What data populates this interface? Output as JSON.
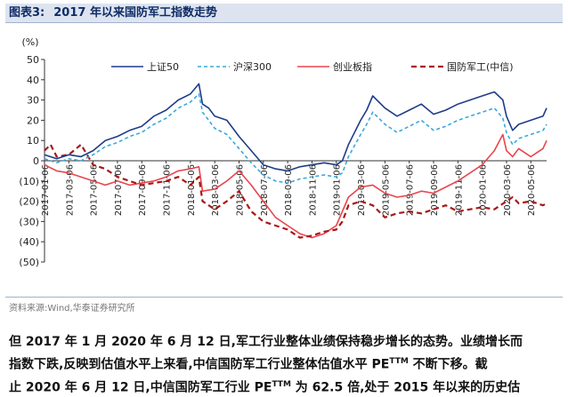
{
  "figure": {
    "label": "图表3:",
    "title": "2017 年以来国防军工指数走势"
  },
  "source": "资料来源:Wind,华泰证券研究所",
  "paragraph": {
    "line1": "但 2017 年 1 月 2020 年 6 月 12 日,军工行业整体业绩保持稳步增长的态势。业绩增长而",
    "line2": "指数下跌,反映到估值水平上来看,中信国防军工行业整体估值水平 PE",
    "line2_sup": "TTM",
    "line2_end": " 不断下移。截",
    "line3": "止 2020 年 6 月 12 日,中信国防军工行业 PE",
    "line3_sup": "TTM",
    "line3_end": " 为 62.5 倍,处于 2015 年以来的历史估"
  },
  "chart_data": {
    "type": "line",
    "ylabel": "(%)",
    "ylim": [
      -50,
      50
    ],
    "yticks": [
      "50",
      "40",
      "30",
      "20",
      "10",
      "0",
      "(10)",
      "(20)",
      "(30)",
      "(40)",
      "(50)"
    ],
    "ytick_values": [
      50,
      40,
      30,
      20,
      10,
      0,
      -10,
      -20,
      -30,
      -40,
      -50
    ],
    "x_ticks": [
      "2017-01-06",
      "2017-03-06",
      "2017-05-06",
      "2017-07-06",
      "2017-09-06",
      "2017-11-06",
      "2018-01-06",
      "2018-03-06",
      "2018-05-06",
      "2018-07-06",
      "2018-09-06",
      "2018-11-06",
      "2019-01-06",
      "2019-03-06",
      "2019-05-06",
      "2019-07-06",
      "2019-09-06",
      "2019-11-06",
      "2020-01-06",
      "2020-03-06",
      "2020-05-06"
    ],
    "x_range_months": [
      0,
      41.3
    ],
    "grid": false,
    "legend_position": "top",
    "series": [
      {
        "name": "上证50",
        "color": "#1f3c88",
        "dash": "solid",
        "points": [
          [
            0,
            3
          ],
          [
            1,
            1
          ],
          [
            2,
            3
          ],
          [
            3,
            2
          ],
          [
            4,
            5
          ],
          [
            5,
            10
          ],
          [
            6,
            12
          ],
          [
            7,
            15
          ],
          [
            8,
            17
          ],
          [
            9,
            22
          ],
          [
            10,
            25
          ],
          [
            11,
            30
          ],
          [
            12,
            33
          ],
          [
            12.7,
            38
          ],
          [
            13,
            28
          ],
          [
            13.5,
            26
          ],
          [
            14,
            22
          ],
          [
            15,
            20
          ],
          [
            16,
            12
          ],
          [
            17,
            5
          ],
          [
            18,
            -2
          ],
          [
            19,
            -4
          ],
          [
            20,
            -5
          ],
          [
            21,
            -3
          ],
          [
            22,
            -2
          ],
          [
            23,
            -1
          ],
          [
            24,
            -2
          ],
          [
            24.5,
            0
          ],
          [
            25,
            8
          ],
          [
            26,
            20
          ],
          [
            26.5,
            25
          ],
          [
            27,
            32
          ],
          [
            28,
            26
          ],
          [
            29,
            22
          ],
          [
            30,
            25
          ],
          [
            31,
            28
          ],
          [
            32,
            23
          ],
          [
            33,
            25
          ],
          [
            34,
            28
          ],
          [
            35,
            30
          ],
          [
            36,
            32
          ],
          [
            37,
            34
          ],
          [
            37.7,
            30
          ],
          [
            38,
            22
          ],
          [
            38.5,
            15
          ],
          [
            39,
            18
          ],
          [
            40,
            20
          ],
          [
            41,
            22
          ],
          [
            41.3,
            26
          ]
        ]
      },
      {
        "name": "沪深300",
        "color": "#39a9dc",
        "dash": "4,3",
        "points": [
          [
            0,
            1
          ],
          [
            1,
            -1
          ],
          [
            2,
            1
          ],
          [
            3,
            0
          ],
          [
            4,
            3
          ],
          [
            5,
            7
          ],
          [
            6,
            9
          ],
          [
            7,
            12
          ],
          [
            8,
            14
          ],
          [
            9,
            18
          ],
          [
            10,
            21
          ],
          [
            11,
            26
          ],
          [
            12,
            29
          ],
          [
            12.7,
            33
          ],
          [
            13,
            24
          ],
          [
            13.5,
            20
          ],
          [
            14,
            16
          ],
          [
            15,
            13
          ],
          [
            16,
            6
          ],
          [
            17,
            -1
          ],
          [
            18,
            -7
          ],
          [
            19,
            -10
          ],
          [
            20,
            -11
          ],
          [
            21,
            -9
          ],
          [
            22,
            -8
          ],
          [
            23,
            -7
          ],
          [
            24,
            -8
          ],
          [
            24.5,
            -6
          ],
          [
            25,
            2
          ],
          [
            26,
            13
          ],
          [
            26.5,
            18
          ],
          [
            27,
            24
          ],
          [
            28,
            18
          ],
          [
            29,
            14
          ],
          [
            30,
            17
          ],
          [
            31,
            20
          ],
          [
            32,
            15
          ],
          [
            33,
            17
          ],
          [
            34,
            20
          ],
          [
            35,
            22
          ],
          [
            36,
            24
          ],
          [
            37,
            26
          ],
          [
            37.7,
            21
          ],
          [
            38,
            14
          ],
          [
            38.5,
            8
          ],
          [
            39,
            11
          ],
          [
            40,
            13
          ],
          [
            41,
            15
          ],
          [
            41.3,
            18
          ]
        ]
      },
      {
        "name": "创业板指",
        "color": "#e8464e",
        "dash": "solid",
        "points": [
          [
            0,
            -2
          ],
          [
            1,
            -5
          ],
          [
            2,
            -6
          ],
          [
            3,
            -8
          ],
          [
            4,
            -10
          ],
          [
            5,
            -12
          ],
          [
            6,
            -10
          ],
          [
            7,
            -12
          ],
          [
            8,
            -11
          ],
          [
            9,
            -10
          ],
          [
            10,
            -8
          ],
          [
            11,
            -5
          ],
          [
            12,
            -4
          ],
          [
            12.7,
            -3
          ],
          [
            13,
            -15
          ],
          [
            14,
            -14
          ],
          [
            15,
            -10
          ],
          [
            16,
            -5
          ],
          [
            17,
            -12
          ],
          [
            18,
            -20
          ],
          [
            19,
            -28
          ],
          [
            20,
            -32
          ],
          [
            21,
            -36
          ],
          [
            22,
            -38
          ],
          [
            23,
            -36
          ],
          [
            24,
            -32
          ],
          [
            24.5,
            -25
          ],
          [
            25,
            -18
          ],
          [
            26,
            -13
          ],
          [
            27,
            -12
          ],
          [
            28,
            -16
          ],
          [
            29,
            -18
          ],
          [
            30,
            -17
          ],
          [
            31,
            -15
          ],
          [
            32,
            -16
          ],
          [
            33,
            -13
          ],
          [
            34,
            -10
          ],
          [
            35,
            -6
          ],
          [
            36,
            -2
          ],
          [
            37,
            5
          ],
          [
            37.7,
            13
          ],
          [
            38,
            5
          ],
          [
            38.5,
            2
          ],
          [
            39,
            6
          ],
          [
            40,
            2
          ],
          [
            41,
            6
          ],
          [
            41.3,
            10
          ]
        ]
      },
      {
        "name": "国防军工(中信)",
        "color": "#a81818",
        "dash": "6,4",
        "points": [
          [
            0,
            5
          ],
          [
            0.5,
            8
          ],
          [
            1,
            2
          ],
          [
            2,
            3
          ],
          [
            3,
            8
          ],
          [
            4,
            -2
          ],
          [
            5,
            -4
          ],
          [
            6,
            -8
          ],
          [
            7,
            -10
          ],
          [
            8,
            -12
          ],
          [
            9,
            -11
          ],
          [
            10,
            -10
          ],
          [
            11,
            -8
          ],
          [
            12,
            -12
          ],
          [
            12.7,
            -8
          ],
          [
            13,
            -20
          ],
          [
            14,
            -24
          ],
          [
            15,
            -20
          ],
          [
            16,
            -15
          ],
          [
            17,
            -25
          ],
          [
            18,
            -30
          ],
          [
            19,
            -32
          ],
          [
            20,
            -34
          ],
          [
            21,
            -38
          ],
          [
            22,
            -37
          ],
          [
            23,
            -35
          ],
          [
            24,
            -34
          ],
          [
            24.5,
            -30
          ],
          [
            25,
            -22
          ],
          [
            26,
            -20
          ],
          [
            27,
            -22
          ],
          [
            28,
            -28
          ],
          [
            29,
            -26
          ],
          [
            30,
            -25
          ],
          [
            31,
            -26
          ],
          [
            32,
            -24
          ],
          [
            33,
            -22
          ],
          [
            34,
            -25
          ],
          [
            35,
            -24
          ],
          [
            36,
            -23
          ],
          [
            37,
            -24
          ],
          [
            38,
            -20
          ],
          [
            38.5,
            -18
          ],
          [
            39,
            -21
          ],
          [
            40,
            -20
          ],
          [
            41,
            -22
          ],
          [
            41.3,
            -21
          ]
        ]
      }
    ]
  }
}
